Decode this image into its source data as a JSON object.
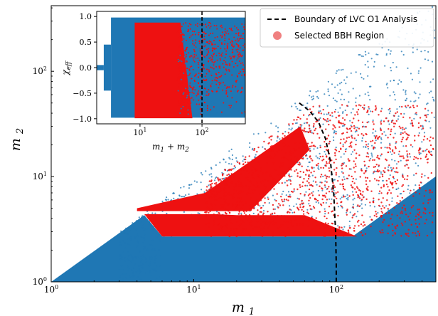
{
  "chart_data": {
    "type": "scatter",
    "main": {
      "xlabel": "m_1",
      "ylabel": "m_2",
      "xscale": "log",
      "yscale": "log",
      "xlim": [
        1,
        500
      ],
      "ylim": [
        1,
        420
      ],
      "x_ticks": [
        {
          "value": 1,
          "base": "10",
          "exp": "0"
        },
        {
          "value": 10,
          "base": "10",
          "exp": "1"
        },
        {
          "value": 100,
          "base": "10",
          "exp": "2"
        }
      ],
      "y_ticks": [
        {
          "value": 1,
          "base": "10",
          "exp": "0"
        },
        {
          "value": 10,
          "base": "10",
          "exp": "1"
        },
        {
          "value": 100,
          "base": "10",
          "exp": "2"
        }
      ],
      "series": [
        {
          "name": "Boundary of LVC O1 Analysis",
          "style": "dashed-line",
          "color": "#000000",
          "x": [
            55,
            65,
            75,
            84,
            91,
            96,
            99,
            100,
            100
          ],
          "y": [
            50,
            42,
            33,
            23,
            14,
            7,
            3,
            1.5,
            1
          ]
        },
        {
          "name": "Selected BBH Region",
          "style": "scatter",
          "color": "#ee1111",
          "regions": [
            {
              "m1_range": [
                6,
                500
              ],
              "m2_range": [
                2.7,
                40
              ],
              "condition": "m1+m2<=400"
            },
            {
              "m1_range": [
                10,
                40
              ],
              "m2_range": [
                3,
                5
              ],
              "condition": "m1+m2<=400"
            }
          ]
        },
        {
          "name": "",
          "style": "scatter",
          "color": "#1f77b4",
          "regions": [
            {
              "m1_range": [
                1,
                500
              ],
              "m2_range": [
                1,
                420
              ],
              "condition": "m2<=m1"
            }
          ]
        }
      ],
      "legend": {
        "position": "top-right",
        "entries": [
          "Boundary of LVC O1 Analysis",
          "Selected BBH Region"
        ]
      }
    },
    "inset": {
      "xlabel": "m_1 + m_2",
      "ylabel": "χ_eff",
      "xscale": "log",
      "xlim": [
        2,
        500
      ],
      "ylim": [
        -1.1,
        1.1
      ],
      "x_ticks": [
        {
          "value": 10,
          "base": "10",
          "exp": "1"
        },
        {
          "value": 100,
          "base": "10",
          "exp": "2"
        }
      ],
      "y_ticks": [
        -1.0,
        -0.5,
        0.0,
        0.5,
        1.0
      ],
      "y_tick_labels": [
        "−1.0",
        "−0.5",
        "0.0",
        "0.5",
        "1.0"
      ],
      "dashed_line_x": 100
    }
  },
  "colors": {
    "blue": "#1f77b4",
    "red": "#ee1111",
    "black": "#000000"
  }
}
